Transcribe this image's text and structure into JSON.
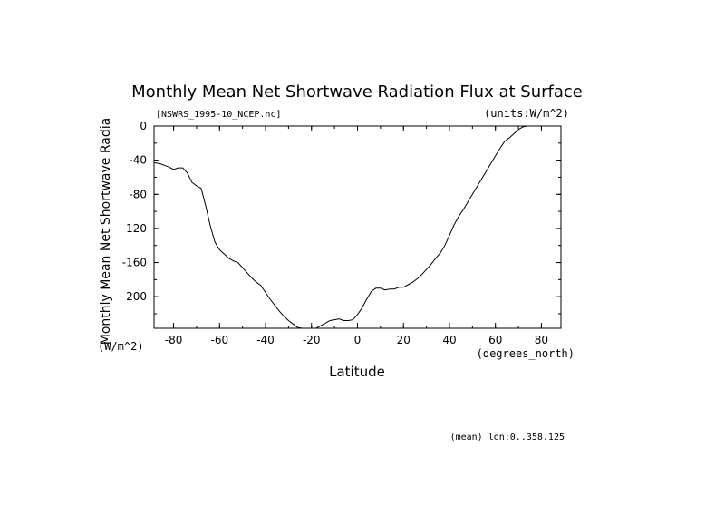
{
  "chart_data": {
    "type": "line",
    "title": "Monthly Mean Net Shortwave Radiation Flux at Surface",
    "file_label": "[NSWRS_1995-10_NCEP.nc]",
    "units_label": "(units:W/m^2)",
    "xlabel": "Latitude",
    "x_units": "(degrees_north)",
    "ylabel": "Monthly Mean Net Shortwave Radia",
    "y_units": "(W/m^2)",
    "footnote": "(mean) lon:0..358.125",
    "xlim": [
      -88.5,
      88.5
    ],
    "ylim": [
      -237,
      0
    ],
    "x_ticks": [
      -80,
      -60,
      -40,
      -20,
      0,
      20,
      40,
      60,
      80
    ],
    "y_ticks": [
      0,
      -40,
      -80,
      -120,
      -160,
      -200
    ],
    "series": [
      {
        "name": "NSWRS",
        "x": [
          -88.5,
          -86,
          -84,
          -82,
          -80,
          -78,
          -76,
          -74,
          -72,
          -70,
          -68,
          -66,
          -64,
          -62,
          -60,
          -58,
          -56,
          -54,
          -52,
          -50,
          -48,
          -46,
          -44,
          -42,
          -40,
          -38,
          -36,
          -34,
          -32,
          -30,
          -28,
          -26,
          -24,
          -22,
          -20,
          -18,
          -16,
          -14,
          -12,
          -10,
          -8,
          -6,
          -4,
          -2,
          0,
          2,
          4,
          6,
          8,
          10,
          12,
          14,
          16,
          18,
          20,
          22,
          24,
          26,
          28,
          30,
          32,
          34,
          36,
          38,
          40,
          42,
          44,
          46,
          48,
          50,
          52,
          54,
          56,
          58,
          60,
          62,
          64,
          66,
          68,
          70,
          72,
          74,
          76,
          78,
          80,
          82,
          84,
          86,
          88.5
        ],
        "y": [
          -43,
          -44,
          -46,
          -48,
          -51,
          -49,
          -49,
          -55,
          -66,
          -70,
          -73,
          -94,
          -117,
          -136,
          -145,
          -150,
          -155,
          -158,
          -160,
          -166,
          -172,
          -178,
          -183,
          -187,
          -195,
          -203,
          -210,
          -217,
          -223,
          -228,
          -232,
          -236,
          -237,
          -237,
          -237,
          -237,
          -234,
          -231,
          -228,
          -227,
          -226,
          -228,
          -228,
          -227,
          -221,
          -213,
          -203,
          -194,
          -190,
          -190,
          -192,
          -191,
          -191,
          -189,
          -189,
          -186,
          -183,
          -179,
          -174,
          -168,
          -162,
          -155,
          -149,
          -140,
          -128,
          -116,
          -106,
          -98,
          -89,
          -80,
          -71,
          -62,
          -53,
          -44,
          -35,
          -26,
          -18,
          -14,
          -9,
          -4,
          -1,
          0,
          0,
          0,
          0,
          0,
          0,
          0,
          0
        ]
      }
    ]
  }
}
